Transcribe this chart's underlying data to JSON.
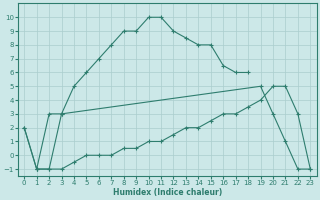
{
  "xlabel": "Humidex (Indice chaleur)",
  "xlim": [
    -0.5,
    23.5
  ],
  "ylim": [
    -1.5,
    11
  ],
  "xticks": [
    0,
    1,
    2,
    3,
    4,
    5,
    6,
    7,
    8,
    9,
    10,
    11,
    12,
    13,
    14,
    15,
    16,
    17,
    18,
    19,
    20,
    21,
    22,
    23
  ],
  "yticks": [
    -1,
    0,
    1,
    2,
    3,
    4,
    5,
    6,
    7,
    8,
    9,
    10
  ],
  "line_color": "#2e7d6e",
  "bg_color": "#cce8e8",
  "grid_color": "#aacece",
  "line1_x": [
    0,
    1,
    2,
    3,
    4,
    5,
    6,
    7,
    8,
    9,
    10,
    11,
    12,
    13,
    14,
    15,
    16,
    17,
    18
  ],
  "line1_y": [
    2,
    -1,
    3,
    3,
    5,
    6,
    7,
    8,
    9,
    9,
    10,
    10,
    9,
    8.5,
    8,
    8,
    6.5,
    6,
    6
  ],
  "line2_x": [
    0,
    1,
    2,
    3,
    19,
    20,
    21,
    22,
    23
  ],
  "line2_y": [
    2,
    -1,
    -1,
    3,
    5,
    3,
    1,
    -1,
    -1
  ],
  "line3_x": [
    1,
    2,
    3,
    4,
    5,
    6,
    7,
    8,
    9,
    10,
    11,
    12,
    13,
    14,
    15,
    16,
    17,
    18,
    19,
    20,
    21,
    22,
    23
  ],
  "line3_y": [
    -1,
    -1,
    -1,
    -0.5,
    0,
    0,
    0,
    0.5,
    0.5,
    1,
    1,
    1.5,
    2,
    2,
    2.5,
    3,
    3,
    3.5,
    4,
    5,
    5,
    3,
    -1
  ]
}
